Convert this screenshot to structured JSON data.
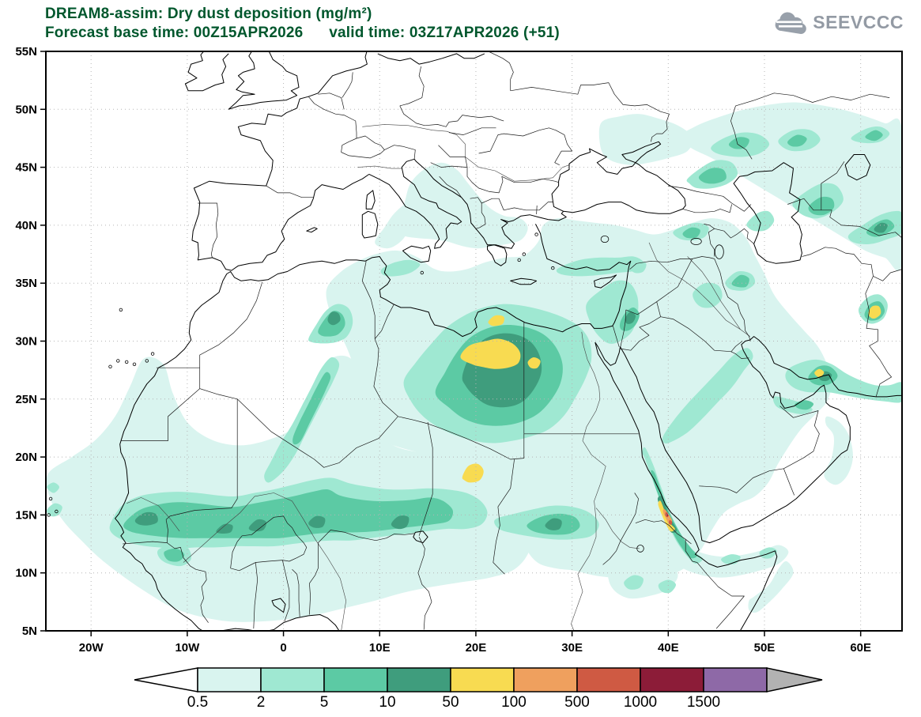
{
  "colors": {
    "title_green": "#00572d",
    "logo_gray": "#939aa4",
    "axis_black": "#000000",
    "grid_gray": "#b5b5b5"
  },
  "header": {
    "title": "DREAM8-assim: Dry dust deposition (mg/m²)",
    "subtitle": "Forecast base time: 00Z15APR2026      valid time: 03Z17APR2026 (+51)",
    "logo_text": "SEEVCCC"
  },
  "map": {
    "lat_ticks": [
      "55N",
      "50N",
      "45N",
      "40N",
      "35N",
      "30N",
      "25N",
      "20N",
      "15N",
      "10N",
      "5N"
    ],
    "lon_ticks": [
      "20W",
      "10W",
      "0",
      "10E",
      "20E",
      "30E",
      "40E",
      "50E",
      "60E"
    ]
  },
  "colorbar": {
    "levels": [
      "0.5",
      "2",
      "5",
      "10",
      "50",
      "100",
      "500",
      "1000",
      "1500"
    ],
    "segment_colors": [
      "#d9f4ef",
      "#9fe8d2",
      "#5ccaa4",
      "#3f9d7d",
      "#f8db51",
      "#efa05e",
      "#cf5a43",
      "#8c1c38",
      "#8e69a7"
    ],
    "under_range_color": "#ffffff",
    "over_range_color": "#b2b2b2"
  },
  "chart_data": {
    "type": "filled-contour-map",
    "title": "DREAM8-assim: Dry dust deposition (mg/m²)",
    "model": "DREAM8-assim",
    "variable": "Dry dust deposition",
    "units": "mg/m²",
    "forecast_base_time": "00Z15APR2026",
    "valid_time": "03Z17APR2026",
    "forecast_step_hours": 51,
    "lon_axis_ticks": [
      "20W",
      "10W",
      "0",
      "10E",
      "20E",
      "30E",
      "40E",
      "50E",
      "60E"
    ],
    "lat_axis_ticks": [
      "5N",
      "10N",
      "15N",
      "20N",
      "25N",
      "30N",
      "35N",
      "40N",
      "45N",
      "50N",
      "55N"
    ],
    "contour_levels_mg_m2": [
      0.5,
      2,
      5,
      10,
      50,
      100,
      500,
      1000,
      1500
    ],
    "deposition_maxima": [
      {
        "area": "NE Libya / NW Egypt desert",
        "approx_location": "19E-25E, 28N-30N",
        "level_mg_m2": "50-100"
      },
      {
        "area": "SE Libya",
        "approx_location": "19E-21E, 18N-19N",
        "level_mg_m2": "50-100"
      },
      {
        "area": "Southern Red Sea coast",
        "approx_location": "39E-41E, 14N-16N",
        "level_mg_m2": "100-1500"
      },
      {
        "area": "Eastern Iran (Sistan)",
        "approx_location": "61E, 32N",
        "level_mg_m2": "50-100"
      },
      {
        "area": "Strait of Hormuz",
        "approx_location": "55E-56E, 27N",
        "level_mg_m2": "50-100"
      },
      {
        "area": "Sahel band",
        "approx_location": "18W-20E, 12N-17N",
        "level_mg_m2": "2-50"
      },
      {
        "area": "Northern Algeria",
        "approx_location": "4E-6E, 31N-33N",
        "level_mg_m2": "10-50"
      }
    ]
  }
}
